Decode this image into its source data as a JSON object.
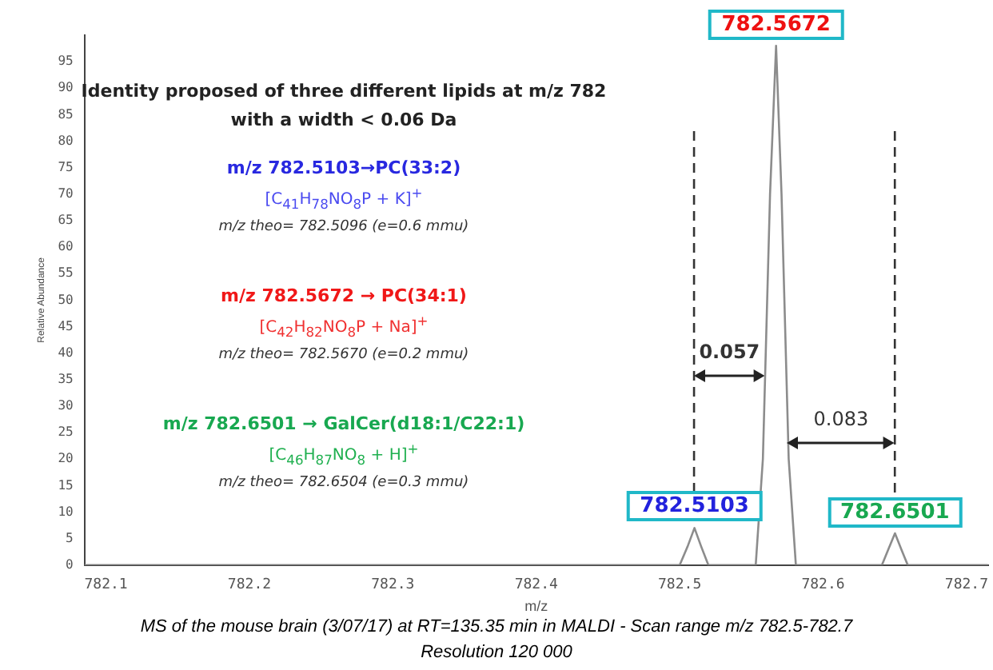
{
  "chart_data": {
    "type": "line",
    "xlabel": "m/z",
    "ylabel": "Relative Abundance",
    "x": [
      782.085,
      782.5,
      782.5055,
      782.5103,
      782.515,
      782.52,
      782.553,
      782.558,
      782.563,
      782.5672,
      782.571,
      782.576,
      782.581,
      782.641,
      782.6455,
      782.6501,
      782.6545,
      782.659,
      782.715
    ],
    "series": [
      {
        "color": "#8c8c8c",
        "values": [
          0,
          0,
          3.5,
          7,
          3.5,
          0,
          0,
          20,
          70,
          98,
          70,
          20,
          0,
          0,
          3,
          6,
          3,
          0,
          0
        ]
      }
    ],
    "xlim": [
      782.085,
      782.715
    ],
    "xticks": [
      782.1,
      782.2,
      782.3,
      782.4,
      782.5,
      782.6,
      782.7
    ],
    "ylim": [
      0,
      100
    ],
    "yticks": [
      0,
      5,
      10,
      15,
      20,
      25,
      30,
      35,
      40,
      45,
      50,
      55,
      60,
      65,
      70,
      75,
      80,
      85,
      90,
      95
    ],
    "grid": false,
    "legend": false,
    "marker": "none",
    "line_style": "solid",
    "ref_lines": [
      {
        "axis": "x",
        "value": 782.51,
        "color": "#333333",
        "line_style": "dashed"
      },
      {
        "axis": "x",
        "value": 782.65,
        "color": "#333333",
        "line_style": "dashed"
      }
    ],
    "annotations": [
      "Identity proposed of three different lipids at m/z 782",
      "with a width < 0.06 Da",
      "m/z 782.5103→PC(33:2)",
      "[C$_{41}$H$_{78}$NO$_{8}$P + K]$^{+}$",
      "m/z theo= 782.5096 (e=0.6 mmu)",
      "m/z 782.5672 → PC(34:1)",
      "[C$_{42}$H$_{82}$NO$_{8}$P + Na]$^{+}$",
      "m/z theo= 782.5670 (e=0.2 mmu)",
      "m/z 782.6501 → GalCer(d18:1/C22:1)",
      "[C$_{46}$H$_{87}$NO$_{8}$ + H]$^{+}$",
      "m/z theo= 782.6504 (e=0.3 mmu)",
      {
        "text": "782.5103",
        "x": 782.5103,
        "y": 7
      },
      {
        "text": "782.5672",
        "x": 782.5672,
        "y": 98
      },
      {
        "text": "782.6501",
        "x": 782.6501,
        "y": 6
      },
      "0.057",
      "0.083",
      "MS of the mouse brain (3/07/17) at RT=135.35 min in MALDI - Scan range m/z 782.5-782.7",
      "Resolution 120 000"
    ]
  }
}
